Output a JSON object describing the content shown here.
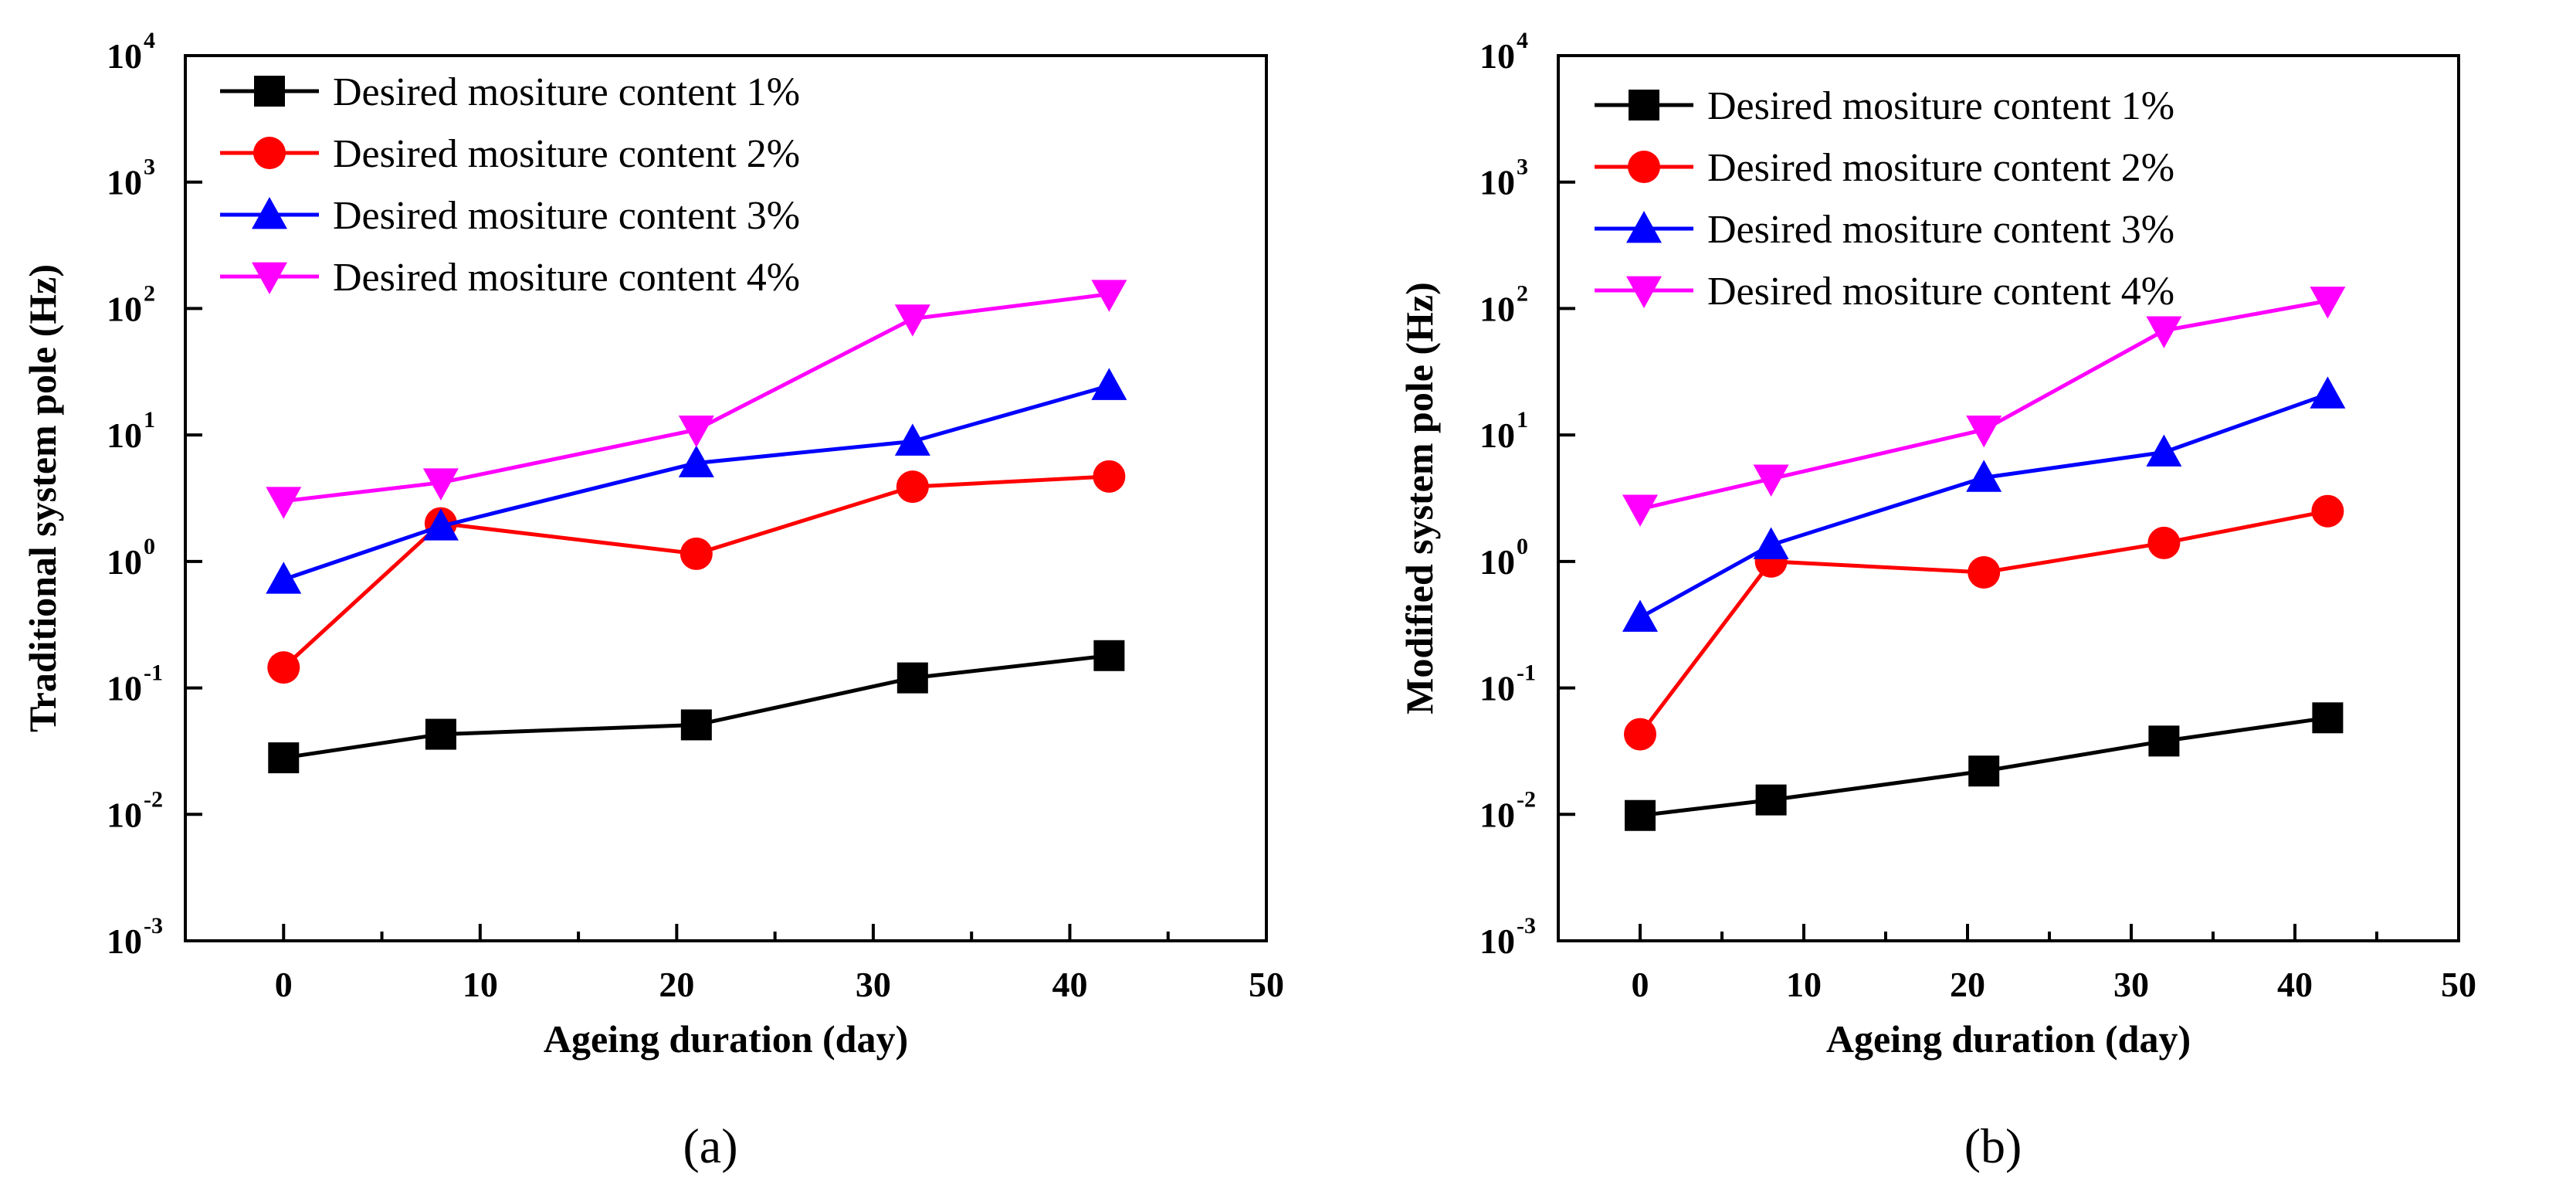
{
  "chart_data": [
    {
      "type": "line",
      "panel_label": "(a)",
      "xlabel": "Ageing duration (day)",
      "ylabel": "Traditional system pole (Hz)",
      "yscale": "log",
      "xlim": [
        -5,
        50
      ],
      "ylim": [
        0.001,
        10000
      ],
      "xticks": [
        0,
        10,
        20,
        30,
        40,
        50
      ],
      "yticks": [
        {
          "base": "10",
          "exp": "-3",
          "value": 0.001
        },
        {
          "base": "10",
          "exp": "-2",
          "value": 0.01
        },
        {
          "base": "10",
          "exp": "-1",
          "value": 0.1
        },
        {
          "base": "10",
          "exp": "0",
          "value": 1
        },
        {
          "base": "10",
          "exp": "1",
          "value": 10
        },
        {
          "base": "10",
          "exp": "2",
          "value": 100
        },
        {
          "base": "10",
          "exp": "3",
          "value": 1000
        },
        {
          "base": "10",
          "exp": "4",
          "value": 10000
        }
      ],
      "legend_position": "top-left",
      "x": [
        0,
        8,
        21,
        32,
        42
      ],
      "series": [
        {
          "name": "Desired mositure content 1%",
          "color": "#000000",
          "marker": "square",
          "values": [
            0.028,
            0.043,
            0.051,
            0.12,
            0.18
          ]
        },
        {
          "name": "Desired mositure content 2%",
          "color": "#ff0000",
          "marker": "circle",
          "values": [
            0.145,
            2.0,
            1.15,
            3.9,
            4.7
          ]
        },
        {
          "name": "Desired mositure content 3%",
          "color": "#0000ff",
          "marker": "triangle-up",
          "values": [
            0.72,
            1.9,
            6.0,
            8.9,
            24.5
          ]
        },
        {
          "name": "Desired mositure content 4%",
          "color": "#ff00ff",
          "marker": "triangle-down",
          "values": [
            3.0,
            4.2,
            11.0,
            83.0,
            130.0
          ]
        }
      ]
    },
    {
      "type": "line",
      "panel_label": "(b)",
      "xlabel": "Ageing duration (day)",
      "ylabel": "Modified system pole (Hz)",
      "yscale": "log",
      "xlim": [
        -5,
        50
      ],
      "ylim": [
        0.001,
        10000
      ],
      "xticks": [
        0,
        10,
        20,
        30,
        40,
        50
      ],
      "yticks": [
        {
          "base": "10",
          "exp": "-3",
          "value": 0.001
        },
        {
          "base": "10",
          "exp": "-2",
          "value": 0.01
        },
        {
          "base": "10",
          "exp": "-1",
          "value": 0.1
        },
        {
          "base": "10",
          "exp": "0",
          "value": 1
        },
        {
          "base": "10",
          "exp": "1",
          "value": 10
        },
        {
          "base": "10",
          "exp": "2",
          "value": 100
        },
        {
          "base": "10",
          "exp": "3",
          "value": 1000
        },
        {
          "base": "10",
          "exp": "4",
          "value": 10000
        }
      ],
      "legend_position": "top-left",
      "x": [
        0,
        8,
        21,
        32,
        42
      ],
      "series": [
        {
          "name": "Desired mositure content 1%",
          "color": "#000000",
          "marker": "square",
          "values": [
            0.0098,
            0.013,
            0.022,
            0.038,
            0.058
          ]
        },
        {
          "name": "Desired mositure content 2%",
          "color": "#ff0000",
          "marker": "circle",
          "values": [
            0.043,
            1.0,
            0.82,
            1.4,
            2.5
          ]
        },
        {
          "name": "Desired mositure content 3%",
          "color": "#0000ff",
          "marker": "triangle-up",
          "values": [
            0.36,
            1.35,
            4.6,
            7.3,
            21.0
          ]
        },
        {
          "name": "Desired mositure content 4%",
          "color": "#ff00ff",
          "marker": "triangle-down",
          "values": [
            2.6,
            4.5,
            11.0,
            67.0,
            115.0
          ]
        }
      ]
    }
  ]
}
